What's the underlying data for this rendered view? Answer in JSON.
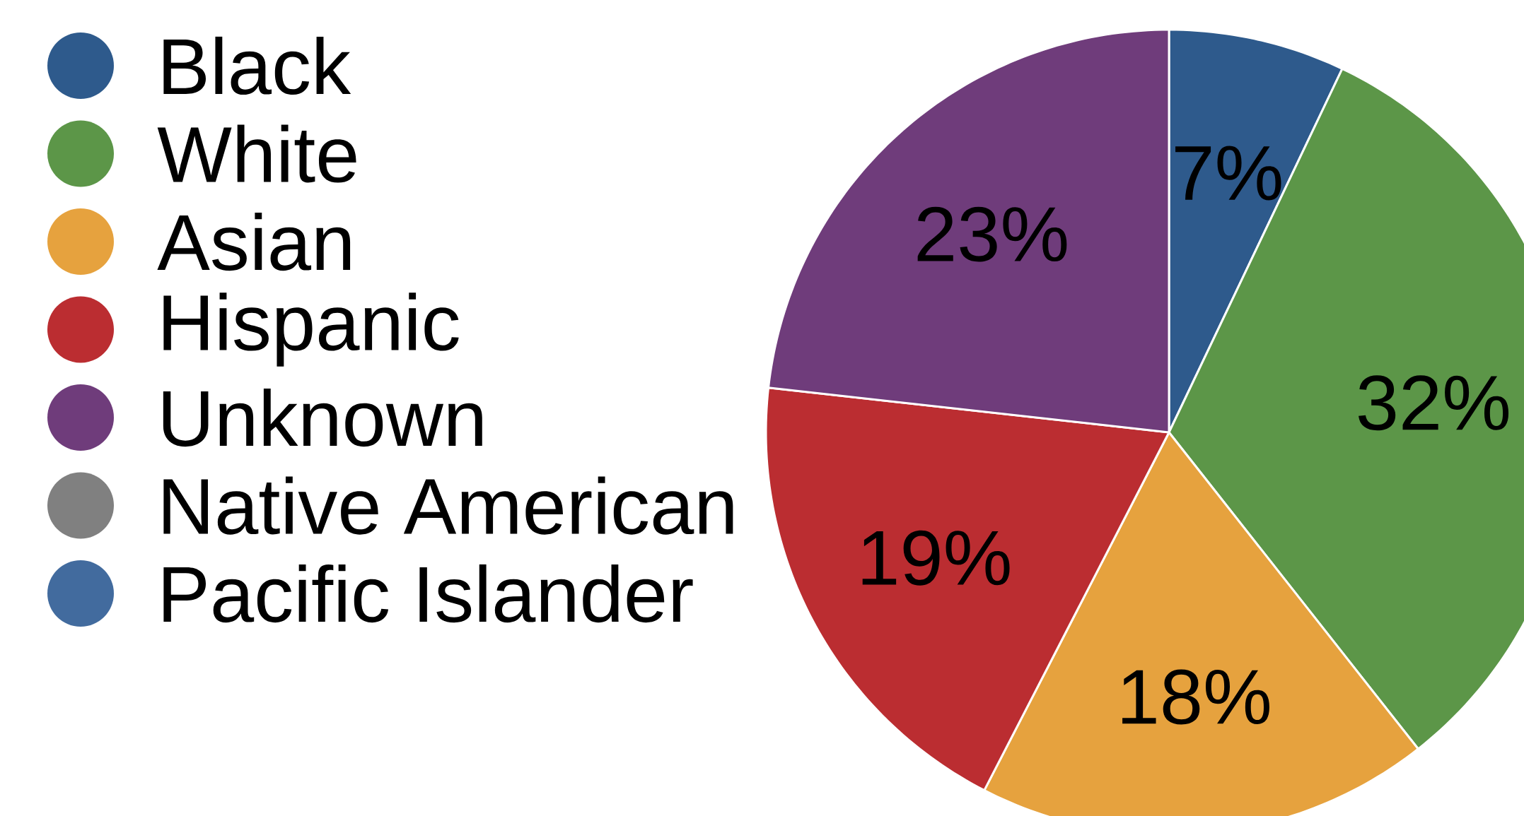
{
  "chart_data": {
    "type": "pie",
    "categories": [
      "Black",
      "White",
      "Asian",
      "Hispanic",
      "Unknown",
      "Native American",
      "Pacific Islander"
    ],
    "values": [
      7,
      32,
      18,
      19,
      23,
      0,
      0
    ],
    "colors": [
      "#2e5a8c",
      "#5c9648",
      "#e6a23e",
      "#bb2d31",
      "#6f3c7b",
      "#808080",
      "#426b9e"
    ],
    "value_labels": [
      "7%",
      "32%",
      "18%",
      "19%",
      "23%",
      null,
      null
    ],
    "legend": "top left"
  }
}
